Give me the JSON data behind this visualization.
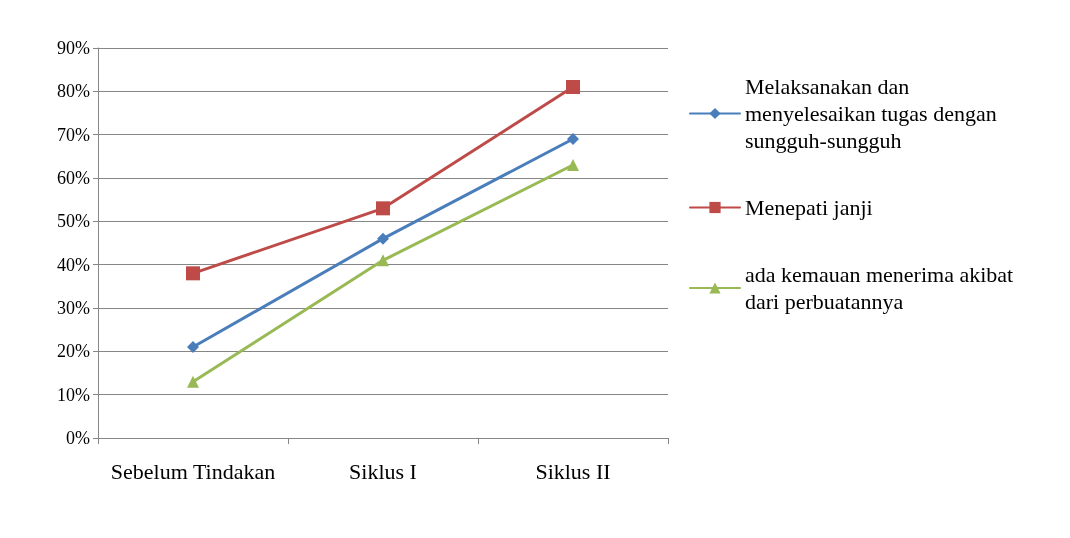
{
  "chart_data": {
    "type": "line",
    "categories": [
      "Sebelum Tindakan",
      "Siklus I",
      "Siklus II"
    ],
    "series": [
      {
        "name": "Melaksanakan dan menyelesaikan tugas dengan sungguh-sungguh",
        "color": "#4a7ebb",
        "marker": "diamond",
        "values": [
          21,
          46,
          69
        ]
      },
      {
        "name": "Menepati janji",
        "color": "#be4b48",
        "marker": "square",
        "values": [
          38,
          53,
          81
        ]
      },
      {
        "name": "ada kemauan menerima akibat dari perbuatannya",
        "color": "#98b954",
        "marker": "triangle",
        "values": [
          13,
          41,
          63
        ]
      }
    ],
    "ylim": [
      0,
      90
    ],
    "yticks": [
      {
        "value": 0,
        "label": "0%"
      },
      {
        "value": 10,
        "label": "10%"
      },
      {
        "value": 20,
        "label": "20%"
      },
      {
        "value": 30,
        "label": "30%"
      },
      {
        "value": 40,
        "label": "40%"
      },
      {
        "value": 50,
        "label": "50%"
      },
      {
        "value": 60,
        "label": "60%"
      },
      {
        "value": 70,
        "label": "70%"
      },
      {
        "value": 80,
        "label": "80%"
      },
      {
        "value": 90,
        "label": "90%"
      }
    ],
    "grid": "y",
    "legend": "right",
    "line_style": "solid"
  }
}
